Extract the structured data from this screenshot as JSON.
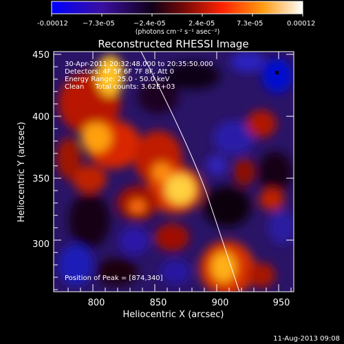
{
  "colorbar": {
    "ticks": [
      "-0.00012",
      "−7.3e-05",
      "−2.4e-05",
      "2.4e-05",
      "7.3e-05",
      "0.00012"
    ],
    "units": "(photons cm⁻² s⁻¹ asec⁻²)",
    "colors": [
      "#0000ff",
      "#2a0a7a",
      "#000000",
      "#7a0a0a",
      "#ff1a00",
      "#ff7a00",
      "#ffcf30",
      "#ffffff"
    ]
  },
  "title": "Reconstructed RHESSI Image",
  "info": {
    "line1": "30-Apr-2011 20:32:48.000 to 20:35:50.000",
    "line2": "Detectors: 4F 5F 6F 7F 8F, Att 0",
    "line3": "Energy Range: 25.0 - 50.0 keV",
    "line4": "Clean     Total counts: 3.62E+03"
  },
  "peak_text": "Position of Peak = [874,340]",
  "axes": {
    "xlabel": "Heliocentric X (arcsec)",
    "ylabel": "Heliocentric Y (arcsec)",
    "xticks": [
      "800",
      "850",
      "900",
      "950"
    ],
    "yticks": [
      "300",
      "350",
      "400",
      "450"
    ]
  },
  "timestamp": "11-Aug-2013 09:08"
}
